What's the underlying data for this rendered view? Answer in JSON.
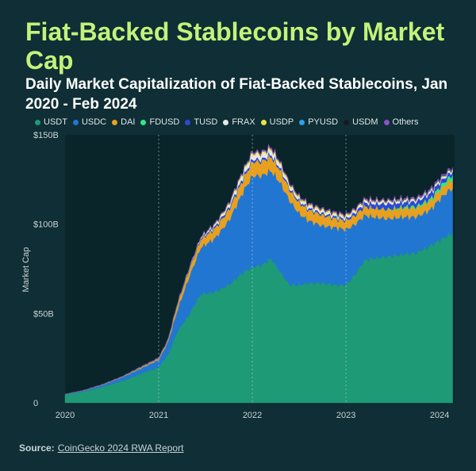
{
  "header": {
    "title": "Fiat-Backed Stablecoins by Market Cap",
    "subtitle": "Daily Market Capitalization of Fiat-Backed Stablecoins, Jan 2020 - Feb 2024"
  },
  "footer": {
    "source_label": "Source:",
    "source_link": "CoinGecko 2024 RWA Report"
  },
  "colors": {
    "background": "#0f2e35",
    "plot_background": "#0a2529",
    "title": "#c3f27b"
  },
  "chart_data": {
    "type": "area",
    "stacked": true,
    "title": "Daily Market Capitalization of Fiat-Backed Stablecoins, Jan 2020 - Feb 2024",
    "xlabel": "",
    "ylabel": "Market Cap",
    "x": [
      2020.0,
      2020.2,
      2020.4,
      2020.6,
      2020.8,
      2021.0,
      2021.1,
      2021.2,
      2021.33,
      2021.45,
      2021.6,
      2021.75,
      2021.9,
      2022.0,
      2022.1,
      2022.2,
      2022.3,
      2022.4,
      2022.5,
      2022.6,
      2022.75,
      2022.9,
      2023.0,
      2023.1,
      2023.2,
      2023.3,
      2023.45,
      2023.6,
      2023.75,
      2023.9,
      2024.0,
      2024.1,
      2024.14
    ],
    "xlim": [
      2020.0,
      2024.16
    ],
    "ylim": [
      0,
      150
    ],
    "x_ticks": [
      "2020",
      "2021",
      "2022",
      "2023",
      "2024"
    ],
    "y_ticks": [
      "0",
      "$50B",
      "$100B",
      "$150B"
    ],
    "y_tick_values": [
      0,
      50,
      100,
      150
    ],
    "vlines": [
      2021,
      2022,
      2023
    ],
    "series": [
      {
        "name": "USDT",
        "color": "#1e9a77",
        "values": [
          4.5,
          6.3,
          9,
          12,
          16,
          20,
          27,
          40,
          50,
          61,
          62,
          66,
          73,
          76,
          77,
          81,
          73,
          66,
          66,
          67,
          67,
          66,
          66,
          72,
          80,
          81,
          82,
          83,
          84,
          88,
          91,
          94,
          95
        ]
      },
      {
        "name": "USDC",
        "color": "#2176d2",
        "values": [
          0.2,
          0.5,
          1,
          2,
          3,
          4,
          7,
          12,
          21,
          26,
          30,
          36,
          45,
          51,
          50,
          49,
          50,
          47,
          40,
          35,
          32,
          32,
          31,
          28,
          25,
          23,
          21,
          21,
          20,
          20,
          23,
          25,
          25
        ]
      },
      {
        "name": "DAI",
        "color": "#e8a01e",
        "values": [
          0,
          0.1,
          0.2,
          0.3,
          0.6,
          0.8,
          1,
          3,
          4,
          4.5,
          5.5,
          6,
          7,
          8,
          8,
          8,
          7,
          6,
          6,
          6,
          6,
          5,
          5,
          5,
          5,
          5,
          5,
          5,
          5,
          5,
          5,
          5,
          5
        ]
      },
      {
        "name": "FDUSD",
        "color": "#2ee887",
        "values": [
          0,
          0,
          0,
          0,
          0,
          0,
          0,
          0,
          0,
          0,
          0,
          0,
          0,
          0,
          0,
          0,
          0,
          0,
          0,
          0,
          0,
          0,
          0,
          0,
          0,
          0,
          0.4,
          0.8,
          1,
          1.2,
          1.8,
          2.2,
          2.4
        ]
      },
      {
        "name": "TUSD",
        "color": "#2f48d6",
        "values": [
          0.1,
          0.1,
          0.1,
          0.2,
          0.3,
          0.3,
          0.3,
          0.4,
          0.6,
          0.7,
          1,
          1.2,
          1.3,
          1.3,
          1.2,
          1.2,
          1.1,
          1,
          1,
          1,
          1,
          1,
          1,
          1.5,
          2,
          2.5,
          3,
          2.5,
          2.5,
          3,
          2.5,
          2,
          2
        ]
      },
      {
        "name": "FRAX",
        "color": "#e8e8e8",
        "values": [
          0,
          0,
          0,
          0,
          0,
          0,
          0,
          0.1,
          0.2,
          0.3,
          0.8,
          1.3,
          2.2,
          2.6,
          2.6,
          2.5,
          2,
          1.5,
          1.3,
          1.2,
          1.2,
          1.1,
          1.1,
          1.1,
          1.1,
          1.1,
          1,
          0.9,
          0.9,
          0.9,
          0.9,
          0.8,
          0.8
        ]
      },
      {
        "name": "USDP",
        "color": "#e6e63a",
        "values": [
          0,
          0,
          0,
          0,
          0,
          0.1,
          0.1,
          0.2,
          0.3,
          0.4,
          0.6,
          0.8,
          1,
          1,
          1,
          1,
          1,
          0.9,
          0.9,
          0.9,
          0.9,
          0.8,
          0.8,
          0.7,
          0.6,
          0.6,
          0.5,
          0.5,
          0.4,
          0.4,
          0.4,
          0.4,
          0.4
        ]
      },
      {
        "name": "PYUSD",
        "color": "#25a4e8",
        "values": [
          0,
          0,
          0,
          0,
          0,
          0,
          0,
          0,
          0,
          0,
          0,
          0,
          0,
          0,
          0,
          0,
          0,
          0,
          0,
          0,
          0,
          0,
          0,
          0,
          0,
          0,
          0.1,
          0.2,
          0.2,
          0.2,
          0.3,
          0.3,
          0.3
        ]
      },
      {
        "name": "USDM",
        "color": "#1a1a1a",
        "values": [
          0,
          0,
          0,
          0,
          0,
          0,
          0,
          0,
          0,
          0,
          0,
          0,
          0,
          0,
          0,
          0,
          0,
          0,
          0,
          0,
          0,
          0,
          0,
          0,
          0,
          0,
          0,
          0,
          0,
          0.1,
          0.1,
          0.1,
          0.1
        ]
      },
      {
        "name": "Others",
        "color": "#8e4fc7",
        "values": [
          0,
          0,
          0,
          0,
          0.1,
          0.1,
          0.1,
          0.2,
          0.2,
          0.3,
          0.4,
          0.5,
          0.6,
          0.7,
          0.7,
          0.7,
          0.6,
          0.6,
          0.6,
          0.6,
          0.6,
          0.6,
          0.6,
          0.6,
          0.6,
          0.6,
          0.6,
          0.6,
          0.7,
          0.7,
          0.7,
          0.7,
          0.7
        ]
      }
    ]
  }
}
